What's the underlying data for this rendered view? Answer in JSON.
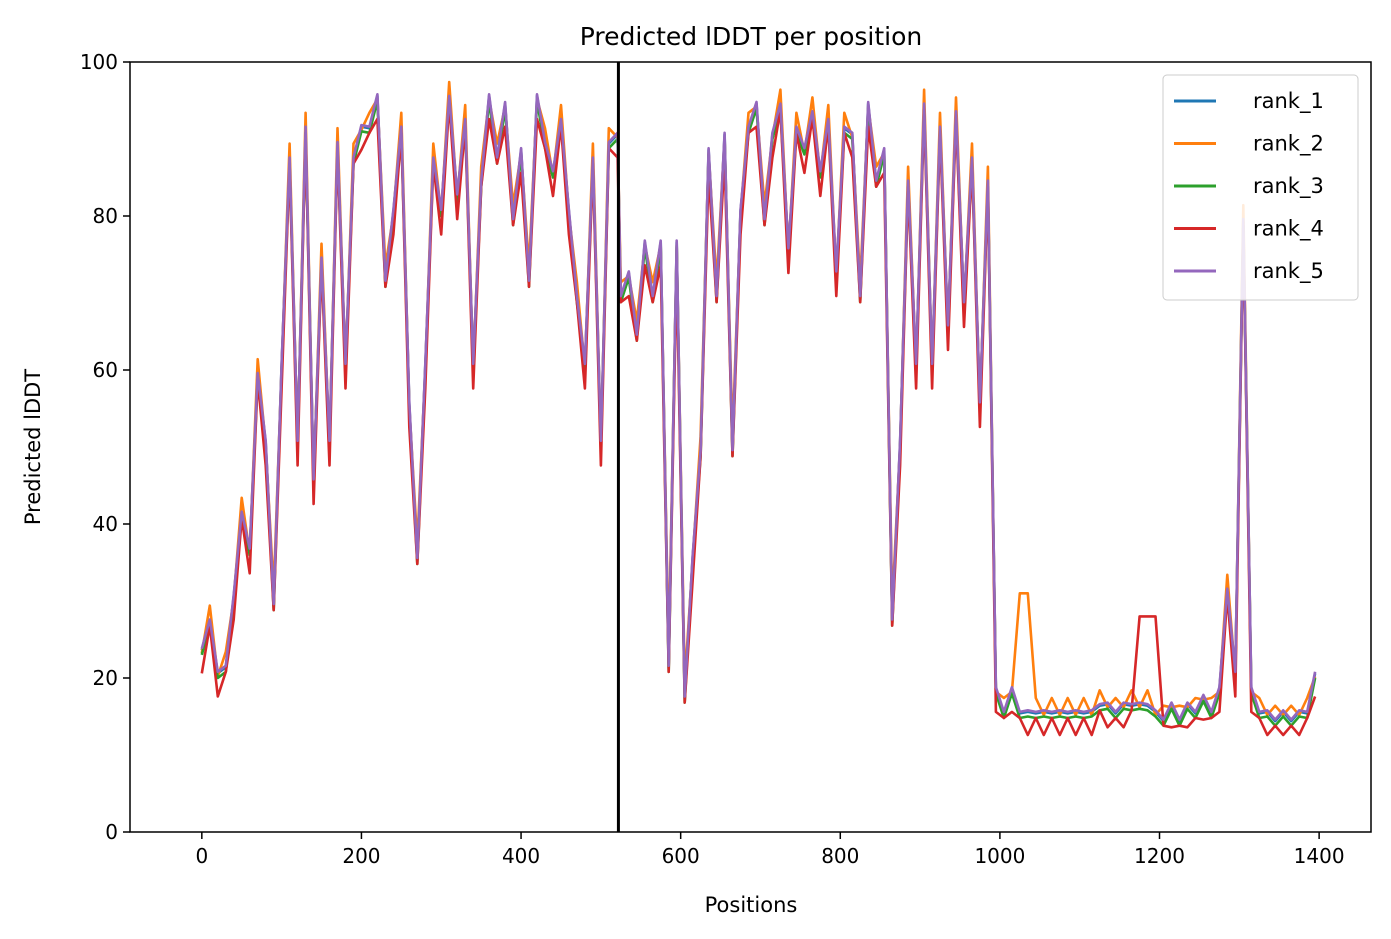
{
  "chart_data": {
    "type": "line",
    "title": "Predicted lDDT per position",
    "xlabel": "Positions",
    "ylabel": "Predicted lDDT",
    "xlim": [
      -90,
      1465
    ],
    "ylim": [
      0,
      100
    ],
    "xticks": [
      0,
      200,
      400,
      600,
      800,
      1000,
      1200,
      1400
    ],
    "yticks": [
      0,
      20,
      40,
      60,
      80,
      100
    ],
    "grid": false,
    "legend_position": "top-right",
    "vline_x": 522,
    "vline_color": "#000000",
    "series": [
      {
        "name": "rank_1",
        "color": "#1f77b4",
        "offset": 0
      },
      {
        "name": "rank_2",
        "color": "#ff7f0e",
        "offset": 0.8
      },
      {
        "name": "rank_3",
        "color": "#2ca02c",
        "offset": -0.6
      },
      {
        "name": "rank_4",
        "color": "#d62728",
        "offset": -1.8
      },
      {
        "name": "rank_5",
        "color": "#9467bd",
        "offset": 0.2
      }
    ],
    "x": [
      0,
      10,
      20,
      30,
      40,
      50,
      60,
      70,
      80,
      90,
      100,
      110,
      120,
      130,
      140,
      150,
      160,
      170,
      180,
      190,
      200,
      210,
      220,
      230,
      240,
      250,
      260,
      270,
      280,
      290,
      300,
      310,
      320,
      330,
      340,
      350,
      360,
      370,
      380,
      390,
      400,
      410,
      420,
      430,
      440,
      450,
      460,
      470,
      480,
      490,
      500,
      510,
      521,
      525,
      535,
      545,
      555,
      565,
      575,
      585,
      595,
      605,
      615,
      625,
      635,
      645,
      655,
      665,
      675,
      685,
      695,
      705,
      715,
      725,
      735,
      745,
      755,
      765,
      775,
      785,
      795,
      805,
      815,
      825,
      835,
      845,
      855,
      865,
      875,
      885,
      895,
      905,
      915,
      925,
      935,
      945,
      955,
      965,
      975,
      985,
      995,
      1005,
      1015,
      1025,
      1035,
      1045,
      1055,
      1065,
      1075,
      1085,
      1095,
      1105,
      1115,
      1125,
      1135,
      1145,
      1155,
      1165,
      1175,
      1185,
      1195,
      1205,
      1215,
      1225,
      1235,
      1245,
      1255,
      1265,
      1275,
      1285,
      1295,
      1305,
      1315,
      1325,
      1335,
      1345,
      1355,
      1365,
      1375,
      1385,
      1395
    ],
    "values": [
      23,
      28,
      20,
      22,
      30,
      42,
      36,
      60,
      50,
      30,
      60,
      88,
      50,
      92,
      45,
      75,
      50,
      90,
      60,
      88,
      91,
      92,
      95,
      72,
      80,
      92,
      55,
      36,
      60,
      88,
      80,
      96,
      82,
      93,
      60,
      85,
      95,
      88,
      94,
      80,
      88,
      72,
      95,
      90,
      85,
      93,
      80,
      70,
      60,
      88,
      50,
      90,
      90,
      70,
      72,
      65,
      76,
      70,
      76,
      22,
      76,
      18,
      35,
      50,
      88,
      70,
      90,
      50,
      80,
      92,
      94,
      80,
      90,
      95,
      75,
      92,
      88,
      94,
      85,
      93,
      72,
      92,
      90,
      70,
      94,
      85,
      88,
      28,
      50,
      85,
      60,
      95,
      60,
      92,
      65,
      94,
      68,
      88,
      55,
      85,
      18,
      16,
      18,
      16,
      15,
      16,
      15,
      16,
      15,
      16,
      15,
      16,
      15,
      17,
      16,
      16,
      16,
      17,
      16,
      17,
      15,
      15,
      16,
      15,
      16,
      16,
      17,
      16,
      18,
      32,
      20,
      80,
      18,
      16,
      15,
      15,
      15,
      15,
      15,
      16,
      20
    ],
    "region_values": {
      "1": {
        "range": [
          1020,
          1040
        ],
        "peak": 31
      },
      "3": {
        "range": [
          1175,
          1195
        ],
        "peak": 28
      }
    }
  }
}
